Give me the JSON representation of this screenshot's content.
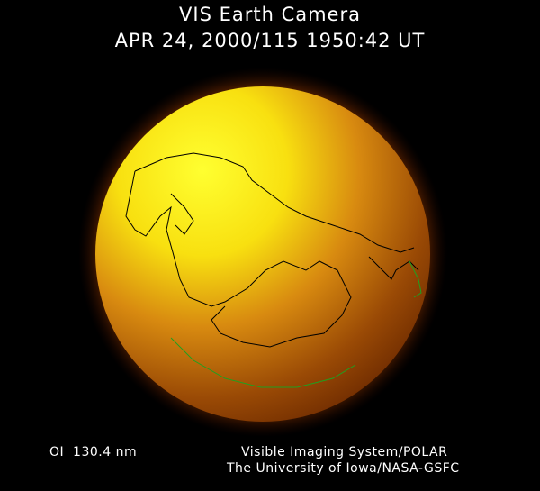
{
  "header": {
    "title": "VIS Earth Camera",
    "timestamp": "APR 24, 2000/115 1950:42 UT"
  },
  "footer": {
    "band": "OI  130.4 nm",
    "credit_line1": "Visible Imaging System/POLAR",
    "credit_line2": "The University of Iowa/NASA-GSFC"
  },
  "colors": {
    "background": "#000000",
    "dayglow": "#ffff20",
    "limb": "#e07000",
    "nightside": "#8a3a00",
    "coastline": "#000000",
    "aurora": "#20a020"
  }
}
